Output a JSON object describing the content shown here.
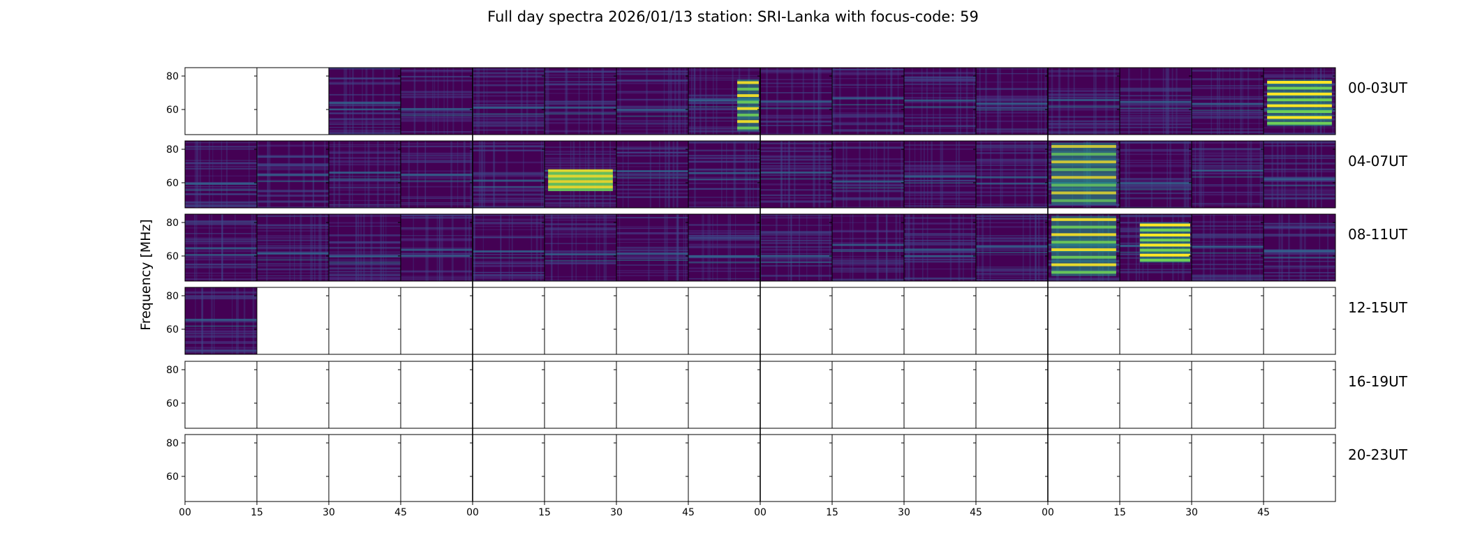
{
  "chart_data": {
    "type": "heatmap",
    "title": "Full day spectra 2026/01/13 station: SRI-Lanka with focus-code: 59",
    "ylabel": "Frequency [MHz]",
    "xlabel": "",
    "colormap": "viridis",
    "colormap_colors": [
      "#440154",
      "#482878",
      "#3e4989",
      "#31688e",
      "#26828e",
      "#1f9e89",
      "#35b779",
      "#6ece58",
      "#b5de2b",
      "#fde725"
    ],
    "ylim": [
      45,
      85
    ],
    "yticks": [
      "80",
      "60"
    ],
    "ytick_values": [
      80,
      60
    ],
    "xtick_labels": [
      "00",
      "15",
      "30",
      "45",
      "00",
      "15",
      "30",
      "45",
      "00",
      "15",
      "30",
      "45",
      "00",
      "15",
      "30",
      "45"
    ],
    "panels_per_row": 16,
    "minutes_per_panel": 15,
    "rows": [
      {
        "label": "00-03UT",
        "start_hour": 0,
        "has_data": [
          false,
          false,
          true,
          true,
          true,
          true,
          true,
          true,
          true,
          true,
          true,
          true,
          true,
          true,
          true,
          true
        ]
      },
      {
        "label": "04-07UT",
        "start_hour": 4,
        "has_data": [
          true,
          true,
          true,
          true,
          true,
          true,
          true,
          true,
          true,
          true,
          true,
          true,
          true,
          true,
          true,
          true
        ]
      },
      {
        "label": "08-11UT",
        "start_hour": 8,
        "has_data": [
          true,
          true,
          true,
          true,
          true,
          true,
          true,
          true,
          true,
          true,
          true,
          true,
          true,
          true,
          true,
          true
        ]
      },
      {
        "label": "12-15UT",
        "start_hour": 12,
        "has_data": [
          true,
          false,
          false,
          false,
          false,
          false,
          false,
          false,
          false,
          false,
          false,
          false,
          false,
          false,
          false,
          false
        ]
      },
      {
        "label": "16-19UT",
        "start_hour": 16,
        "has_data": [
          false,
          false,
          false,
          false,
          false,
          false,
          false,
          false,
          false,
          false,
          false,
          false,
          false,
          false,
          false,
          false
        ]
      },
      {
        "label": "20-23UT",
        "start_hour": 20,
        "has_data": [
          false,
          false,
          false,
          false,
          false,
          false,
          false,
          false,
          false,
          false,
          false,
          false,
          false,
          false,
          false,
          false
        ]
      }
    ],
    "bright_bursts": [
      {
        "row": 0,
        "col": 7,
        "freq_low": 47,
        "freq_high": 78,
        "intensity": 0.9
      },
      {
        "row": 0,
        "col": 15,
        "freq_low": 50,
        "freq_high": 78,
        "intensity": 1.0
      },
      {
        "row": 1,
        "col": 5,
        "freq_low": 55,
        "freq_high": 68,
        "intensity": 0.85
      },
      {
        "row": 1,
        "col": 12,
        "freq_low": 47,
        "freq_high": 84,
        "intensity": 0.75
      },
      {
        "row": 2,
        "col": 12,
        "freq_low": 48,
        "freq_high": 84,
        "intensity": 0.9
      },
      {
        "row": 2,
        "col": 13,
        "freq_low": 56,
        "freq_high": 80,
        "intensity": 1.0
      }
    ]
  }
}
